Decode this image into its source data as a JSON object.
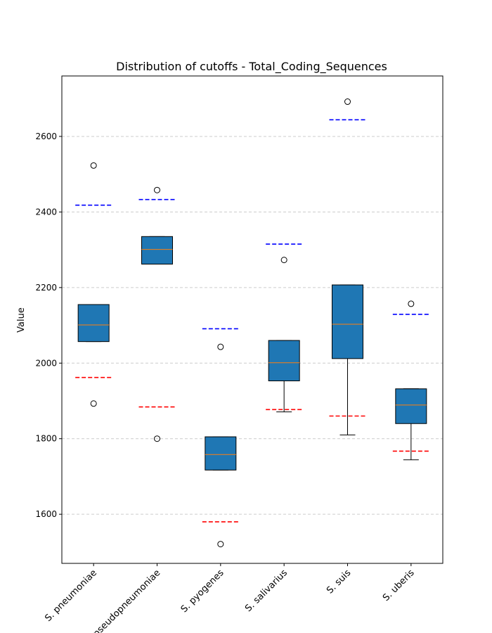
{
  "chart_data": {
    "type": "box",
    "title": "Distribution of cutoffs - Total_Coding_Sequences",
    "xlabel": "",
    "ylabel": "Value",
    "ylim": [
      1470,
      2760
    ],
    "yticks": [
      1600,
      1800,
      2000,
      2200,
      2400,
      2600
    ],
    "grid": "horizontal-dashed",
    "colors": {
      "box_fill": "#1f77b4",
      "median": "#ff7f0e",
      "upper_cutoff": "#0000ff",
      "lower_cutoff": "#ff0000",
      "grid": "#cccccc"
    },
    "categories": [
      {
        "label": "S. pneumoniae",
        "q1": 2057,
        "median": 2101,
        "q3": 2155,
        "whisker_low": 2057,
        "whisker_high": 2155,
        "outliers": [
          2523,
          1893
        ],
        "upper_cutoff": 2418,
        "lower_cutoff": 1962
      },
      {
        "label": "S. pseudopneumoniae",
        "q1": 2262,
        "median": 2301,
        "q3": 2335,
        "whisker_low": 2262,
        "whisker_high": 2335,
        "outliers": [
          2458,
          1800
        ],
        "upper_cutoff": 2433,
        "lower_cutoff": 1884
      },
      {
        "label": "S. pyogenes",
        "q1": 1717,
        "median": 1758,
        "q3": 1805,
        "whisker_low": 1717,
        "whisker_high": 1805,
        "outliers": [
          2043,
          1521
        ],
        "upper_cutoff": 2091,
        "lower_cutoff": 1580
      },
      {
        "label": "S. salivarius",
        "q1": 1953,
        "median": 2001,
        "q3": 2060,
        "whisker_low": 1871,
        "whisker_high": 2060,
        "outliers": [
          2273
        ],
        "upper_cutoff": 2315,
        "lower_cutoff": 1877
      },
      {
        "label": "S. suis",
        "q1": 2012,
        "median": 2103,
        "q3": 2207,
        "whisker_low": 1810,
        "whisker_high": 2207,
        "outliers": [
          2692
        ],
        "upper_cutoff": 2644,
        "lower_cutoff": 1860
      },
      {
        "label": "S. uberis",
        "q1": 1840,
        "median": 1889,
        "q3": 1932,
        "whisker_low": 1744,
        "whisker_high": 1932,
        "outliers": [
          2157
        ],
        "upper_cutoff": 2129,
        "lower_cutoff": 1767
      }
    ]
  }
}
